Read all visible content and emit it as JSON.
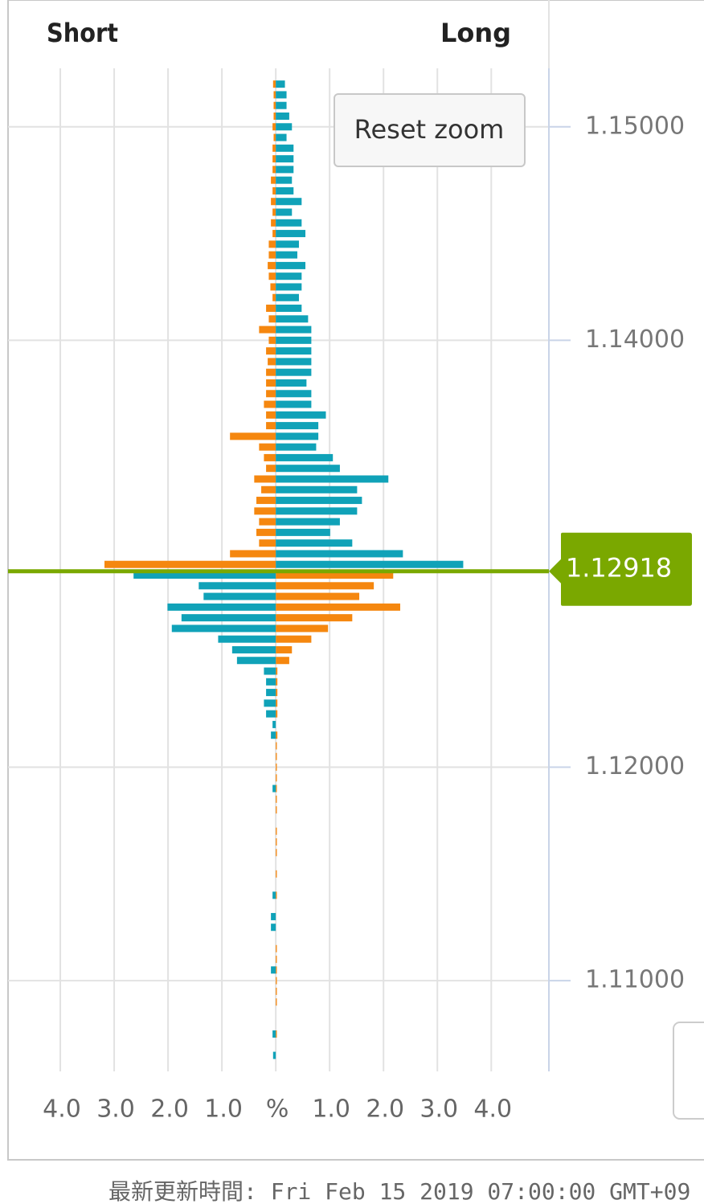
{
  "chart_data": {
    "type": "bar",
    "orientation": "horizontal",
    "left_label": "Short",
    "right_label": "Long",
    "button": "Reset zoom",
    "footer": "最新更新時間: Fri Feb 15 2019 07:00:00 GMT+09",
    "xlim": [
      -4.97,
      5.07
    ],
    "xticks": [
      {
        "value": -4,
        "label": "4.0"
      },
      {
        "value": -3,
        "label": "3.0"
      },
      {
        "value": -2,
        "label": "2.0"
      },
      {
        "value": -1,
        "label": "1.0"
      },
      {
        "value": 0,
        "label": "%"
      },
      {
        "value": 1,
        "label": "1.0"
      },
      {
        "value": 2,
        "label": "2.0"
      },
      {
        "value": 3,
        "label": "3.0"
      },
      {
        "value": 4,
        "label": "4.0"
      }
    ],
    "ylim": [
      1.10575,
      1.15274
    ],
    "yticks": [
      {
        "value": 1.15,
        "label": "1.15000"
      },
      {
        "value": 1.14,
        "label": "1.14000"
      },
      {
        "value": 1.12,
        "label": "1.12000"
      },
      {
        "value": 1.11,
        "label": "1.11000"
      }
    ],
    "grid": true,
    "current": 1.12918,
    "current_color": "#7aa800",
    "y": [
      1.152,
      1.1515,
      1.151,
      1.1505,
      1.15,
      1.1495,
      1.149,
      1.1485,
      1.148,
      1.1475,
      1.147,
      1.1465,
      1.146,
      1.1455,
      1.145,
      1.1445,
      1.144,
      1.1435,
      1.143,
      1.1425,
      1.142,
      1.1415,
      1.141,
      1.1405,
      1.14,
      1.1395,
      1.139,
      1.1385,
      1.138,
      1.1375,
      1.137,
      1.1365,
      1.136,
      1.1355,
      1.135,
      1.1345,
      1.134,
      1.1335,
      1.133,
      1.1325,
      1.132,
      1.1315,
      1.131,
      1.1305,
      1.13,
      1.1295,
      1.129,
      1.1285,
      1.128,
      1.1275,
      1.127,
      1.1265,
      1.126,
      1.1255,
      1.125,
      1.1245,
      1.124,
      1.1235,
      1.123,
      1.1225,
      1.122,
      1.1215,
      1.121,
      1.1205,
      1.12,
      1.1195,
      1.119,
      1.1185,
      1.118,
      1.1175,
      1.117,
      1.1165,
      1.116,
      1.1155,
      1.115,
      1.1145,
      1.114,
      1.1135,
      1.113,
      1.1125,
      1.112,
      1.1115,
      1.111,
      1.1105,
      1.11,
      1.1095,
      1.109,
      1.1085,
      1.108,
      1.1075,
      1.107,
      1.1065
    ],
    "series": [
      {
        "color": "#f5870f",
        "values": [
          -0.05,
          -0.04,
          -0.04,
          -0.04,
          -0.06,
          -0.04,
          -0.06,
          -0.06,
          -0.06,
          -0.09,
          -0.06,
          -0.09,
          -0.06,
          -0.09,
          -0.06,
          -0.13,
          -0.13,
          -0.15,
          -0.13,
          -0.1,
          -0.06,
          -0.18,
          -0.13,
          -0.31,
          -0.13,
          -0.18,
          -0.15,
          -0.18,
          -0.18,
          -0.18,
          -0.22,
          -0.18,
          -0.18,
          -0.85,
          -0.31,
          -0.22,
          -0.18,
          -0.4,
          -0.27,
          -0.36,
          -0.4,
          -0.31,
          -0.36,
          -0.31,
          -0.85,
          -3.18,
          2.18,
          1.82,
          1.55,
          2.31,
          1.42,
          0.97,
          0.66,
          0.3,
          0.25,
          0.03,
          0.03,
          0.03,
          0.03,
          0.03,
          null,
          0.03,
          0.02,
          0.02,
          0.02,
          0.02,
          0.02,
          0.02,
          0.02,
          null,
          0.02,
          0.02,
          0.02,
          null,
          0.02,
          null,
          0.02,
          null,
          null,
          null,
          null,
          0.02,
          0.02,
          0.02,
          0.02,
          0.02,
          0.02,
          null,
          null,
          0.02,
          null,
          null
        ]
      },
      {
        "color": "#10a2b8",
        "values": [
          0.17,
          0.2,
          0.2,
          0.25,
          0.3,
          0.2,
          0.33,
          0.33,
          0.33,
          0.3,
          0.33,
          0.48,
          0.3,
          0.48,
          0.55,
          0.43,
          0.4,
          0.55,
          0.48,
          0.48,
          0.43,
          0.48,
          0.6,
          0.66,
          0.66,
          0.66,
          0.66,
          0.66,
          0.57,
          0.66,
          0.66,
          0.93,
          0.79,
          0.79,
          0.75,
          1.06,
          1.19,
          2.09,
          1.51,
          1.6,
          1.51,
          1.19,
          1.01,
          1.42,
          2.36,
          3.48,
          -2.64,
          -1.43,
          -1.34,
          -2.01,
          -1.75,
          -1.93,
          -1.07,
          -0.81,
          -0.72,
          -0.22,
          -0.18,
          -0.18,
          -0.22,
          -0.18,
          -0.06,
          -0.09,
          null,
          null,
          null,
          null,
          -0.06,
          null,
          null,
          null,
          null,
          null,
          null,
          null,
          null,
          null,
          -0.06,
          null,
          -0.09,
          -0.09,
          null,
          null,
          null,
          -0.09,
          null,
          null,
          null,
          null,
          null,
          -0.06,
          null,
          -0.05
        ]
      }
    ]
  }
}
